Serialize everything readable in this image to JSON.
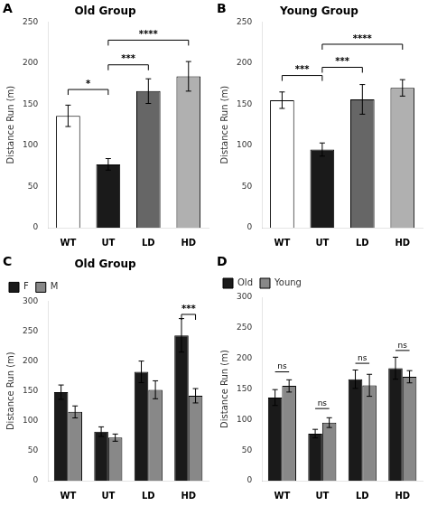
{
  "chart_data": [
    {
      "type": "bar",
      "panel_label": "A",
      "title": "Old Group",
      "categories": [
        "WT",
        "UT",
        "LD",
        "HD"
      ],
      "series": [
        {
          "values": [
            136,
            77,
            166,
            184
          ],
          "errors": [
            13,
            7,
            15,
            18
          ],
          "colors": [
            "#ffffff",
            "#1a1a1a",
            "#666666",
            "#b0b0b0"
          ]
        }
      ],
      "ylim": [
        0,
        250
      ],
      "yticks": [
        0,
        50,
        100,
        150,
        200,
        250
      ],
      "ylabel": "Distance Run (m)",
      "grid": false,
      "annotations": [
        {
          "text": "*",
          "from": "WT",
          "to": "UT",
          "y": 168,
          "line_style": "bracket"
        },
        {
          "text": "***",
          "from": "UT",
          "to": "LD",
          "y": 198,
          "line_style": "bracket"
        },
        {
          "text": "****",
          "from": "UT",
          "to": "HD",
          "y": 228,
          "line_style": "bracket"
        }
      ]
    },
    {
      "type": "bar",
      "panel_label": "B",
      "title": "Young Group",
      "categories": [
        "WT",
        "UT",
        "LD",
        "HD"
      ],
      "series": [
        {
          "values": [
            155,
            95,
            156,
            170
          ],
          "errors": [
            10,
            8,
            18,
            10
          ],
          "colors": [
            "#ffffff",
            "#1a1a1a",
            "#666666",
            "#b0b0b0"
          ]
        }
      ],
      "ylim": [
        0,
        250
      ],
      "yticks": [
        0,
        50,
        100,
        150,
        200,
        250
      ],
      "ylabel": "Distance Run (m)",
      "grid": false,
      "annotations": [
        {
          "text": "***",
          "from": "WT",
          "to": "UT",
          "y": 185,
          "line_style": "bracket"
        },
        {
          "text": "***",
          "from": "UT",
          "to": "LD",
          "y": 195,
          "line_style": "bracket"
        },
        {
          "text": "****",
          "from": "UT",
          "to": "HD",
          "y": 223,
          "line_style": "bracket"
        }
      ]
    },
    {
      "type": "bar",
      "panel_label": "C",
      "title": "Old Group",
      "categories": [
        "WT",
        "UT",
        "LD",
        "HD"
      ],
      "series": [
        {
          "name": "F",
          "color": "#1a1a1a",
          "values": [
            148,
            82,
            182,
            243
          ],
          "errors": [
            12,
            8,
            18,
            28
          ]
        },
        {
          "name": "M",
          "color": "#888888",
          "values": [
            115,
            72,
            152,
            142
          ],
          "errors": [
            10,
            6,
            15,
            12
          ]
        }
      ],
      "ylim": [
        0,
        300
      ],
      "yticks": [
        0,
        50,
        100,
        150,
        200,
        250,
        300
      ],
      "ylabel": "Distance Run (m)",
      "grid": false,
      "legend": "upper left",
      "annotations": [
        {
          "text": "***",
          "from": "HD",
          "to": "HD",
          "y": 278,
          "line_style": "bracket"
        }
      ]
    },
    {
      "type": "bar",
      "panel_label": "D",
      "categories": [
        "WT",
        "UT",
        "LD",
        "HD"
      ],
      "series": [
        {
          "name": "Old",
          "color": "#1a1a1a",
          "values": [
            136,
            77,
            166,
            184
          ],
          "errors": [
            13,
            7,
            15,
            18
          ]
        },
        {
          "name": "Young",
          "color": "#888888",
          "values": [
            155,
            95,
            156,
            170
          ],
          "errors": [
            10,
            8,
            18,
            10
          ]
        }
      ],
      "ylim": [
        0,
        300
      ],
      "yticks": [
        0,
        50,
        100,
        150,
        200,
        250,
        300
      ],
      "ylabel": "Distance Run (m)",
      "grid": false,
      "legend": "upper left",
      "annotations": [
        {
          "text": "ns",
          "from": "WT",
          "to": "WT",
          "y": 178,
          "line_style": "line"
        },
        {
          "text": "ns",
          "from": "UT",
          "to": "UT",
          "y": 118,
          "line_style": "line"
        },
        {
          "text": "ns",
          "from": "LD",
          "to": "LD",
          "y": 192,
          "line_style": "line"
        },
        {
          "text": "ns",
          "from": "HD",
          "to": "HD",
          "y": 213,
          "line_style": "line"
        }
      ]
    }
  ]
}
